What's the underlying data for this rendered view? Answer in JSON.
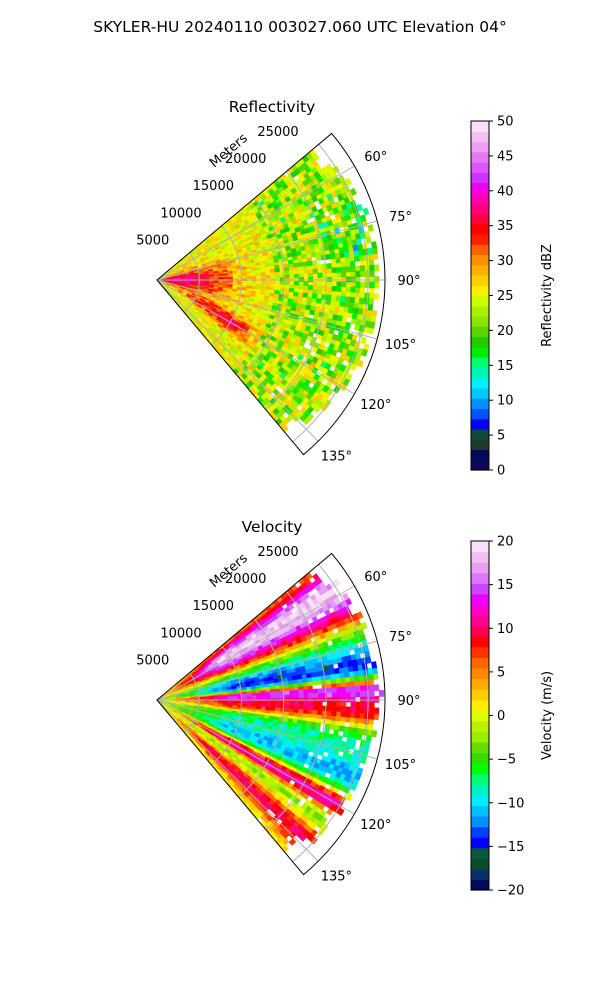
{
  "figure": {
    "suptitle": "SKYLER-HU  20240110  003027.060 UTC Elevation 04°"
  },
  "chart_data": [
    {
      "type": "heatmap",
      "projection": "polar sector (PPI)",
      "title": "Reflectivity",
      "range_axis_label": "Meters",
      "range_ticks": [
        5000,
        10000,
        15000,
        20000,
        25000
      ],
      "range_tick_labels": [
        "5000",
        "10000",
        "15000",
        "20000",
        "25000"
      ],
      "max_range_m": 27000,
      "azimuth_range_deg": [
        50,
        140
      ],
      "azimuth_ticks_deg": [
        60,
        75,
        90,
        105,
        120,
        135
      ],
      "azimuth_tick_labels": [
        "60°",
        "75°",
        "90°",
        "105°",
        "120°",
        "135°"
      ],
      "grid": true,
      "colorbar": {
        "label": "Reflectivity dBZ",
        "vmin": 0,
        "vmax": 50,
        "ticks": [
          0,
          5,
          10,
          15,
          20,
          25,
          30,
          35,
          40,
          45,
          50
        ],
        "tick_labels": [
          "0",
          "5",
          "10",
          "15",
          "20",
          "25",
          "30",
          "35",
          "40",
          "45",
          "50"
        ]
      },
      "field_summary": "Mostly 22–30 dBZ (yellow) throughout the sector; a 33–40 dBZ red core near the radar at 80–100° out to about 8000 m; red streaks around 115–125° near 10000 m; green 15–20 dBZ patches scattered at far range"
    },
    {
      "type": "heatmap",
      "projection": "polar sector (PPI)",
      "title": "Velocity",
      "range_axis_label": "Meters",
      "range_ticks": [
        5000,
        10000,
        15000,
        20000,
        25000
      ],
      "range_tick_labels": [
        "5000",
        "10000",
        "15000",
        "20000",
        "25000"
      ],
      "max_range_m": 27000,
      "azimuth_range_deg": [
        50,
        140
      ],
      "azimuth_ticks_deg": [
        60,
        75,
        90,
        105,
        120,
        135
      ],
      "azimuth_tick_labels": [
        "60°",
        "75°",
        "90°",
        "105°",
        "120°",
        "135°"
      ],
      "grid": true,
      "colorbar": {
        "label": "Velocity (m/s)",
        "vmin": -20,
        "vmax": 20,
        "ticks": [
          -20,
          -15,
          -10,
          -5,
          0,
          5,
          10,
          15,
          20
        ],
        "tick_labels": [
          "−20",
          "−15",
          "−10",
          "−5",
          "0",
          "5",
          "10",
          "15",
          "20"
        ]
      },
      "field_summary": "Folded velocity pattern: +15 to +20 m/s (magenta) at 55–60° far range and at 84–88°; −5 to −12 m/s (green/cyan) bands at 75–84° and 103–120°; +8 to +12 m/s (red) bands near 93° and 130–137°; near-zero (yellow) near the radar"
    }
  ],
  "colormaps": {
    "reflectivity": [
      "#0a0a5c",
      "#08085a",
      "#1e3a2c",
      "#0f4a3a",
      "#0000ff",
      "#0055ff",
      "#0090ff",
      "#00c8ff",
      "#00f0ff",
      "#00f5b0",
      "#00ff70",
      "#00ee00",
      "#22cc00",
      "#55d400",
      "#88e600",
      "#aaf000",
      "#ccff00",
      "#ffee00",
      "#ffd000",
      "#ffb000",
      "#ff9000",
      "#ff6000",
      "#ff2000",
      "#ff0000",
      "#ff0040",
      "#ff0080",
      "#ff00b0",
      "#ee00ee",
      "#cc33ff",
      "#dd55ff",
      "#e878f0",
      "#f0a0f0",
      "#f4c0f4",
      "#f8e0f8"
    ],
    "velocity": [
      "#000a5a",
      "#08306b",
      "#0b4a2b",
      "#0a5a3a",
      "#0000ff",
      "#0040ff",
      "#0090ff",
      "#00c0ff",
      "#00eeff",
      "#00f0c0",
      "#00ff70",
      "#00ff00",
      "#33dd00",
      "#66dd00",
      "#99ee00",
      "#bbf000",
      "#ddff00",
      "#ffee00",
      "#ffcc00",
      "#ffaa00",
      "#ff8800",
      "#ff6600",
      "#ff3300",
      "#ff0000",
      "#ff0050",
      "#ff0090",
      "#ff00cc",
      "#ee00ff",
      "#cc44ff",
      "#dd77ff",
      "#e8a0ee",
      "#f0c0f4",
      "#f8e0fa"
    ]
  }
}
